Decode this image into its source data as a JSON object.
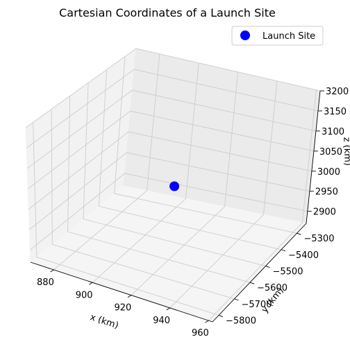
{
  "chart_data": {
    "type": "scatter",
    "projection": "3d",
    "title": "Cartesian Coordinates of a Launch Site",
    "xlabel": "x (km)",
    "ylabel": "y (km)",
    "zlabel": "z (km)",
    "xlim": [
      868,
      962
    ],
    "ylim": [
      -5840,
      -5240
    ],
    "zlim": [
      2870,
      3200
    ],
    "xticks": [
      880,
      900,
      920,
      940,
      960
    ],
    "yticks": [
      -5800,
      -5700,
      -5600,
      -5500,
      -5400,
      -5300
    ],
    "zticks": [
      2900,
      2950,
      3000,
      3050,
      3100,
      3150,
      3200
    ],
    "grid": true,
    "legend_position": "top-right",
    "series": [
      {
        "name": "Launch Site",
        "color": "#0000ff",
        "marker": "circle",
        "points": [
          {
            "x": 917,
            "y": -5540,
            "z": 3018
          }
        ]
      }
    ]
  }
}
